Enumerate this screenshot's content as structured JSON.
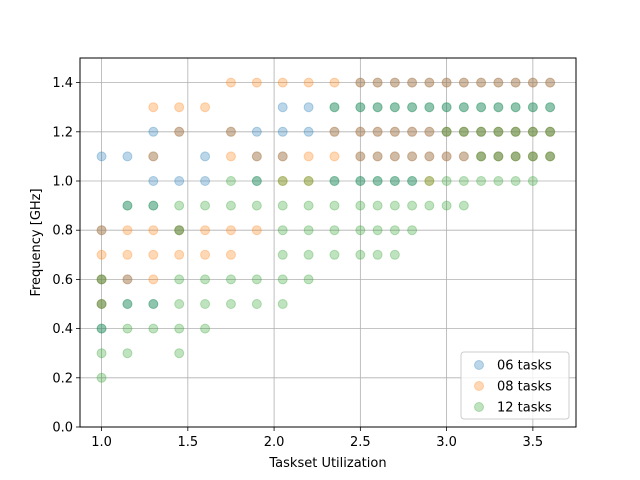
{
  "chart_data": {
    "type": "scatter",
    "title": "",
    "xlabel": "Taskset Utilization",
    "ylabel": "Frequency [GHz]",
    "xlim": [
      0.875,
      3.75
    ],
    "ylim": [
      0.0,
      1.5
    ],
    "xticks": [
      1.0,
      1.5,
      2.0,
      2.5,
      3.0,
      3.5
    ],
    "xtick_labels": [
      "1.0",
      "1.5",
      "2.0",
      "2.5",
      "3.0",
      "3.5"
    ],
    "yticks": [
      0.0,
      0.2,
      0.4,
      0.6,
      0.8,
      1.0,
      1.2,
      1.4
    ],
    "ytick_labels": [
      "0.0",
      "0.2",
      "0.4",
      "0.6",
      "0.8",
      "1.0",
      "1.2",
      "1.4"
    ],
    "grid": true,
    "legend_position": "bottom-right",
    "series": [
      {
        "name": "06 tasks",
        "color": "#1f77b4",
        "opacity": 0.3,
        "points": [
          [
            1.0,
            1.1
          ],
          [
            1.0,
            0.8
          ],
          [
            1.0,
            0.6
          ],
          [
            1.0,
            0.5
          ],
          [
            1.0,
            0.4
          ],
          [
            1.15,
            1.1
          ],
          [
            1.15,
            0.9
          ],
          [
            1.15,
            0.6
          ],
          [
            1.15,
            0.5
          ],
          [
            1.3,
            1.2
          ],
          [
            1.3,
            1.1
          ],
          [
            1.3,
            1.0
          ],
          [
            1.3,
            0.9
          ],
          [
            1.3,
            0.5
          ],
          [
            1.45,
            1.2
          ],
          [
            1.45,
            1.0
          ],
          [
            1.45,
            0.8
          ],
          [
            1.6,
            1.1
          ],
          [
            1.6,
            1.0
          ],
          [
            1.75,
            1.2
          ],
          [
            1.9,
            1.2
          ],
          [
            1.9,
            1.1
          ],
          [
            1.9,
            1.0
          ],
          [
            2.05,
            1.3
          ],
          [
            2.05,
            1.2
          ],
          [
            2.05,
            1.1
          ],
          [
            2.2,
            1.3
          ],
          [
            2.2,
            1.2
          ],
          [
            2.35,
            1.3
          ],
          [
            2.35,
            1.2
          ],
          [
            2.35,
            1.0
          ],
          [
            2.5,
            1.4
          ],
          [
            2.5,
            1.3
          ],
          [
            2.5,
            1.2
          ],
          [
            2.5,
            1.1
          ],
          [
            2.5,
            1.0
          ],
          [
            2.6,
            1.4
          ],
          [
            2.6,
            1.3
          ],
          [
            2.6,
            1.2
          ],
          [
            2.6,
            1.1
          ],
          [
            2.6,
            1.0
          ],
          [
            2.7,
            1.4
          ],
          [
            2.7,
            1.3
          ],
          [
            2.7,
            1.2
          ],
          [
            2.7,
            1.1
          ],
          [
            2.7,
            1.0
          ],
          [
            2.8,
            1.4
          ],
          [
            2.8,
            1.3
          ],
          [
            2.8,
            1.2
          ],
          [
            2.8,
            1.1
          ],
          [
            2.8,
            1.0
          ],
          [
            2.9,
            1.4
          ],
          [
            2.9,
            1.3
          ],
          [
            2.9,
            1.2
          ],
          [
            2.9,
            1.1
          ],
          [
            3.0,
            1.4
          ],
          [
            3.0,
            1.3
          ],
          [
            3.0,
            1.2
          ],
          [
            3.0,
            1.1
          ],
          [
            3.1,
            1.4
          ],
          [
            3.1,
            1.3
          ],
          [
            3.1,
            1.2
          ],
          [
            3.1,
            1.1
          ],
          [
            3.2,
            1.4
          ],
          [
            3.2,
            1.3
          ],
          [
            3.2,
            1.2
          ],
          [
            3.2,
            1.1
          ],
          [
            3.3,
            1.4
          ],
          [
            3.3,
            1.3
          ],
          [
            3.3,
            1.2
          ],
          [
            3.3,
            1.1
          ],
          [
            3.4,
            1.4
          ],
          [
            3.4,
            1.3
          ],
          [
            3.4,
            1.2
          ],
          [
            3.4,
            1.1
          ],
          [
            3.5,
            1.4
          ],
          [
            3.5,
            1.3
          ],
          [
            3.5,
            1.2
          ],
          [
            3.5,
            1.1
          ],
          [
            3.6,
            1.4
          ],
          [
            3.6,
            1.3
          ],
          [
            3.6,
            1.2
          ],
          [
            3.6,
            1.1
          ]
        ]
      },
      {
        "name": "08 tasks",
        "color": "#ff7f0e",
        "opacity": 0.3,
        "points": [
          [
            1.0,
            0.8
          ],
          [
            1.0,
            0.7
          ],
          [
            1.0,
            0.6
          ],
          [
            1.0,
            0.5
          ],
          [
            1.15,
            0.8
          ],
          [
            1.15,
            0.7
          ],
          [
            1.15,
            0.6
          ],
          [
            1.3,
            1.3
          ],
          [
            1.3,
            1.1
          ],
          [
            1.3,
            0.8
          ],
          [
            1.3,
            0.7
          ],
          [
            1.3,
            0.6
          ],
          [
            1.45,
            1.3
          ],
          [
            1.45,
            1.2
          ],
          [
            1.45,
            0.8
          ],
          [
            1.45,
            0.7
          ],
          [
            1.6,
            1.3
          ],
          [
            1.6,
            0.8
          ],
          [
            1.6,
            0.7
          ],
          [
            1.75,
            1.4
          ],
          [
            1.75,
            1.2
          ],
          [
            1.75,
            1.1
          ],
          [
            1.75,
            0.8
          ],
          [
            1.75,
            0.7
          ],
          [
            1.9,
            1.4
          ],
          [
            1.9,
            1.1
          ],
          [
            1.9,
            0.8
          ],
          [
            2.05,
            1.4
          ],
          [
            2.05,
            1.1
          ],
          [
            2.05,
            1.0
          ],
          [
            2.2,
            1.4
          ],
          [
            2.2,
            1.1
          ],
          [
            2.2,
            1.0
          ],
          [
            2.35,
            1.4
          ],
          [
            2.35,
            1.2
          ],
          [
            2.35,
            1.1
          ],
          [
            2.5,
            1.4
          ],
          [
            2.5,
            1.2
          ],
          [
            2.5,
            1.1
          ],
          [
            2.6,
            1.4
          ],
          [
            2.6,
            1.2
          ],
          [
            2.6,
            1.1
          ],
          [
            2.7,
            1.4
          ],
          [
            2.7,
            1.2
          ],
          [
            2.7,
            1.1
          ],
          [
            2.8,
            1.4
          ],
          [
            2.8,
            1.2
          ],
          [
            2.8,
            1.1
          ],
          [
            2.9,
            1.4
          ],
          [
            2.9,
            1.2
          ],
          [
            2.9,
            1.1
          ],
          [
            2.9,
            1.0
          ],
          [
            3.0,
            1.4
          ],
          [
            3.0,
            1.2
          ],
          [
            3.0,
            1.1
          ],
          [
            3.1,
            1.4
          ],
          [
            3.1,
            1.2
          ],
          [
            3.1,
            1.1
          ],
          [
            3.2,
            1.4
          ],
          [
            3.2,
            1.2
          ],
          [
            3.2,
            1.1
          ],
          [
            3.3,
            1.4
          ],
          [
            3.3,
            1.2
          ],
          [
            3.3,
            1.1
          ],
          [
            3.4,
            1.4
          ],
          [
            3.4,
            1.2
          ],
          [
            3.4,
            1.1
          ],
          [
            3.5,
            1.4
          ],
          [
            3.5,
            1.2
          ],
          [
            3.5,
            1.1
          ],
          [
            3.6,
            1.4
          ],
          [
            3.6,
            1.2
          ],
          [
            3.6,
            1.1
          ]
        ]
      },
      {
        "name": "12 tasks",
        "color": "#2ca02c",
        "opacity": 0.3,
        "points": [
          [
            1.0,
            0.6
          ],
          [
            1.0,
            0.5
          ],
          [
            1.0,
            0.4
          ],
          [
            1.0,
            0.3
          ],
          [
            1.0,
            0.2
          ],
          [
            1.15,
            0.9
          ],
          [
            1.15,
            0.5
          ],
          [
            1.15,
            0.4
          ],
          [
            1.15,
            0.3
          ],
          [
            1.3,
            0.9
          ],
          [
            1.3,
            0.5
          ],
          [
            1.3,
            0.4
          ],
          [
            1.45,
            0.9
          ],
          [
            1.45,
            0.8
          ],
          [
            1.45,
            0.6
          ],
          [
            1.45,
            0.5
          ],
          [
            1.45,
            0.4
          ],
          [
            1.45,
            0.3
          ],
          [
            1.6,
            0.9
          ],
          [
            1.6,
            0.6
          ],
          [
            1.6,
            0.5
          ],
          [
            1.6,
            0.4
          ],
          [
            1.75,
            1.0
          ],
          [
            1.75,
            0.9
          ],
          [
            1.75,
            0.6
          ],
          [
            1.75,
            0.5
          ],
          [
            1.9,
            1.0
          ],
          [
            1.9,
            0.9
          ],
          [
            1.9,
            0.6
          ],
          [
            1.9,
            0.5
          ],
          [
            2.05,
            1.0
          ],
          [
            2.05,
            0.9
          ],
          [
            2.05,
            0.8
          ],
          [
            2.05,
            0.7
          ],
          [
            2.05,
            0.6
          ],
          [
            2.05,
            0.5
          ],
          [
            2.2,
            1.0
          ],
          [
            2.2,
            0.9
          ],
          [
            2.2,
            0.8
          ],
          [
            2.2,
            0.7
          ],
          [
            2.2,
            0.6
          ],
          [
            2.35,
            1.3
          ],
          [
            2.35,
            1.0
          ],
          [
            2.35,
            0.9
          ],
          [
            2.35,
            0.8
          ],
          [
            2.35,
            0.7
          ],
          [
            2.5,
            1.3
          ],
          [
            2.5,
            1.0
          ],
          [
            2.5,
            0.9
          ],
          [
            2.5,
            0.8
          ],
          [
            2.5,
            0.7
          ],
          [
            2.6,
            1.3
          ],
          [
            2.6,
            1.0
          ],
          [
            2.6,
            0.9
          ],
          [
            2.6,
            0.8
          ],
          [
            2.6,
            0.7
          ],
          [
            2.7,
            1.3
          ],
          [
            2.7,
            1.0
          ],
          [
            2.7,
            0.9
          ],
          [
            2.7,
            0.8
          ],
          [
            2.7,
            0.7
          ],
          [
            2.8,
            1.3
          ],
          [
            2.8,
            1.0
          ],
          [
            2.8,
            0.9
          ],
          [
            2.8,
            0.8
          ],
          [
            2.9,
            1.3
          ],
          [
            2.9,
            1.0
          ],
          [
            2.9,
            0.9
          ],
          [
            3.0,
            1.3
          ],
          [
            3.0,
            1.2
          ],
          [
            3.0,
            1.0
          ],
          [
            3.0,
            0.9
          ],
          [
            3.1,
            1.3
          ],
          [
            3.1,
            1.2
          ],
          [
            3.1,
            1.0
          ],
          [
            3.1,
            0.9
          ],
          [
            3.2,
            1.3
          ],
          [
            3.2,
            1.2
          ],
          [
            3.2,
            1.1
          ],
          [
            3.2,
            1.0
          ],
          [
            3.3,
            1.3
          ],
          [
            3.3,
            1.2
          ],
          [
            3.3,
            1.1
          ],
          [
            3.3,
            1.0
          ],
          [
            3.4,
            1.3
          ],
          [
            3.4,
            1.2
          ],
          [
            3.4,
            1.1
          ],
          [
            3.4,
            1.0
          ],
          [
            3.5,
            1.3
          ],
          [
            3.5,
            1.2
          ],
          [
            3.5,
            1.1
          ],
          [
            3.5,
            1.0
          ],
          [
            3.6,
            1.3
          ],
          [
            3.6,
            1.2
          ],
          [
            3.6,
            1.1
          ]
        ]
      }
    ]
  }
}
